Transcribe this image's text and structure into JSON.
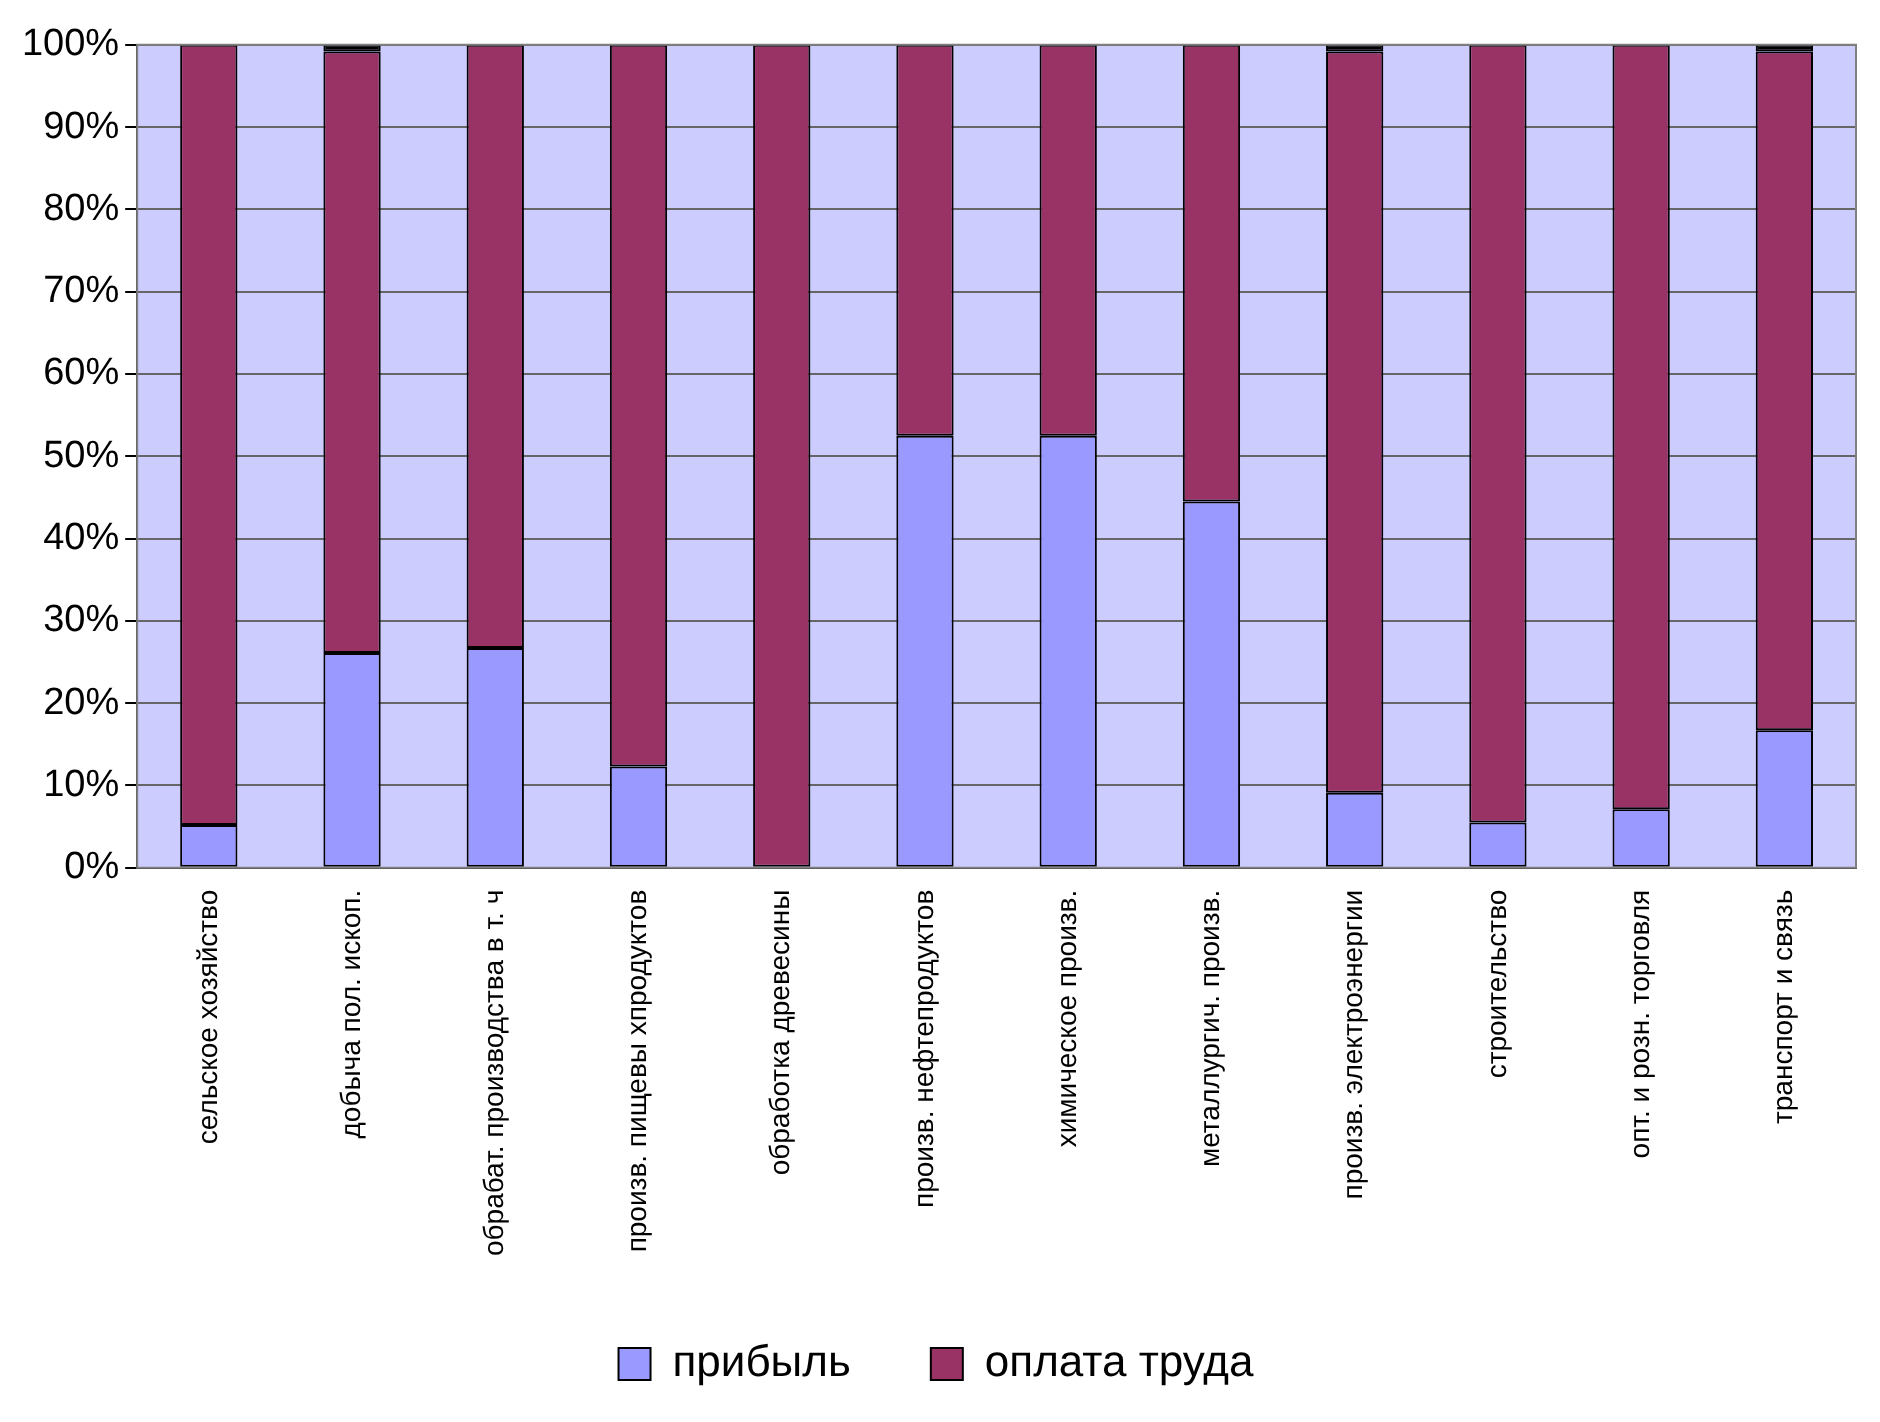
{
  "chart_data": {
    "type": "bar",
    "stacked": true,
    "categories": [
      "сельское хозяйство",
      "добыча пол. ископ.",
      "обрабат. производства в т. ч",
      "произв. пищевы хпродуктов",
      "обработка древесины",
      "произв. нефтепродуктов",
      "химическое произв.",
      "металлургич. произв.",
      "произв. электроэнергии",
      "строительство",
      "опт. и розн. торговля",
      "транспорт и связь"
    ],
    "series": [
      {
        "name": "прибыль",
        "color": "#9999ff",
        "values": [
          5.2,
          26.1,
          26.7,
          12.3,
          0,
          52.5,
          52.5,
          44.5,
          9.1,
          5.5,
          7.1,
          16.7
        ]
      },
      {
        "name": "оплата труда",
        "color": "#993366",
        "values": [
          94.8,
          73.1,
          73.3,
          87.7,
          100,
          47.5,
          47.5,
          55.5,
          90.1,
          94.5,
          92.9,
          82.5
        ]
      },
      {
        "color": "#000000",
        "values": [
          0,
          0.8,
          0,
          0,
          0,
          0,
          0,
          0,
          0.8,
          0,
          0,
          0.8
        ]
      }
    ],
    "ylim": [
      0,
      100
    ],
    "yticks": [
      {
        "value": 0,
        "label": "0%"
      },
      {
        "value": 10,
        "label": "10%"
      },
      {
        "value": 20,
        "label": "20%"
      },
      {
        "value": 30,
        "label": "30%"
      },
      {
        "value": 40,
        "label": "40%"
      },
      {
        "value": 50,
        "label": "50%"
      },
      {
        "value": 60,
        "label": "60%"
      },
      {
        "value": 70,
        "label": "70%"
      },
      {
        "value": 80,
        "label": "80%"
      },
      {
        "value": 90,
        "label": "90%"
      },
      {
        "value": 100,
        "label": "100%"
      }
    ],
    "grid": "y",
    "legend": "bottom"
  }
}
